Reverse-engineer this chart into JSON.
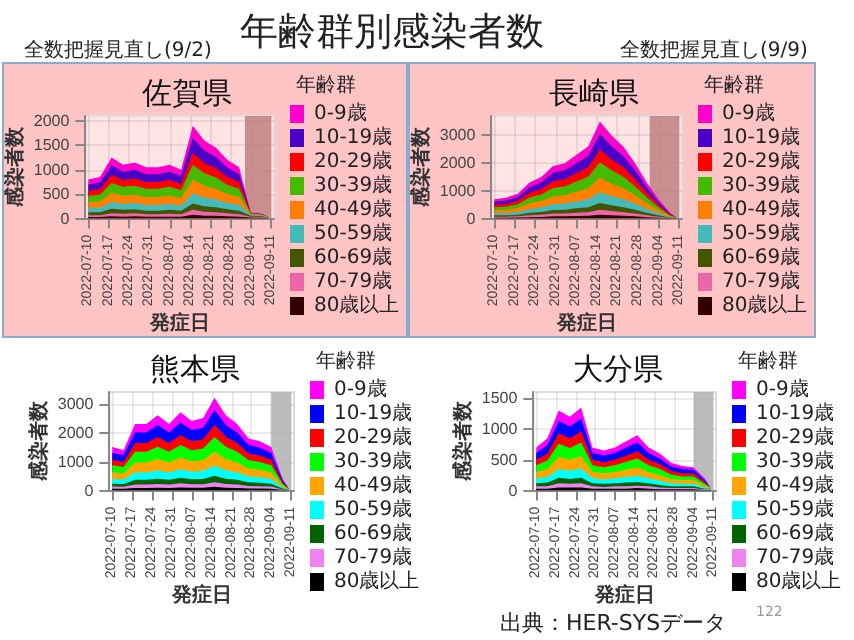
{
  "chart_data": [
    {
      "type": "area",
      "title": "佐賀県",
      "xlabel": "発症日",
      "ylabel": "感染者数",
      "legend_title": "年齢群",
      "annotations": [
        "年齢群別感染者数",
        "全数把握見直し(9/2)"
      ],
      "stacked": true,
      "grid": true,
      "legend": "right",
      "x": [
        "2022-07-10",
        "2022-07-14",
        "2022-07-18",
        "2022-07-22",
        "2022-07-26",
        "2022-07-30",
        "2022-08-03",
        "2022-08-07",
        "2022-08-11",
        "2022-08-15",
        "2022-08-19",
        "2022-08-23",
        "2022-08-27",
        "2022-08-31",
        "2022-09-04",
        "2022-09-08",
        "2022-09-10"
      ],
      "xlim": [
        "2022-07-09",
        "2022-09-12"
      ],
      "xticks": [
        "2022-07-10",
        "2022-07-17",
        "2022-07-24",
        "2022-07-31",
        "2022-08-07",
        "2022-08-14",
        "2022-08-21",
        "2022-08-28",
        "2022-09-04",
        "2022-09-11"
      ],
      "ylim": [
        0,
        2100
      ],
      "yticks": [
        0,
        500,
        1000,
        1500,
        2000
      ],
      "bands": [
        {
          "axis": "x",
          "from": "2022-09-02",
          "to": "2022-09-11",
          "color": "#c08080"
        }
      ],
      "series": [
        {
          "name": "80歳以上",
          "color": "#330000",
          "values": [
            30,
            30,
            50,
            40,
            50,
            40,
            40,
            40,
            40,
            80,
            60,
            60,
            50,
            40,
            20,
            15,
            5
          ]
        },
        {
          "name": "70-79歳",
          "color": "#ee66aa",
          "values": [
            40,
            40,
            60,
            60,
            60,
            50,
            50,
            60,
            50,
            100,
            80,
            70,
            60,
            50,
            20,
            20,
            5
          ]
        },
        {
          "name": "60-69歳",
          "color": "#445500",
          "values": [
            60,
            60,
            90,
            80,
            80,
            70,
            70,
            80,
            70,
            130,
            110,
            100,
            80,
            70,
            20,
            15,
            5
          ]
        },
        {
          "name": "50-59歳",
          "color": "#44bbbb",
          "values": [
            90,
            90,
            140,
            120,
            130,
            120,
            120,
            120,
            110,
            210,
            180,
            160,
            130,
            120,
            20,
            15,
            5
          ]
        },
        {
          "name": "40-49歳",
          "color": "#ff8000",
          "values": [
            120,
            130,
            190,
            170,
            170,
            160,
            160,
            170,
            150,
            280,
            240,
            220,
            180,
            160,
            15,
            10,
            5
          ]
        },
        {
          "name": "30-39歳",
          "color": "#44bb00",
          "values": [
            130,
            140,
            200,
            180,
            180,
            170,
            170,
            180,
            160,
            300,
            260,
            230,
            190,
            170,
            10,
            10,
            0
          ]
        },
        {
          "name": "20-29歳",
          "color": "#ff0000",
          "values": [
            100,
            110,
            160,
            140,
            150,
            140,
            140,
            140,
            130,
            250,
            210,
            190,
            160,
            140,
            5,
            5,
            0
          ]
        },
        {
          "name": "10-19歳",
          "color": "#4b00c8",
          "values": [
            130,
            140,
            200,
            170,
            180,
            160,
            160,
            170,
            160,
            300,
            250,
            230,
            190,
            160,
            5,
            5,
            0
          ]
        },
        {
          "name": "0-9歳",
          "color": "#ff00cc",
          "values": [
            100,
            110,
            160,
            140,
            150,
            140,
            140,
            140,
            130,
            250,
            210,
            190,
            160,
            140,
            10,
            5,
            0
          ]
        }
      ]
    },
    {
      "type": "area",
      "title": "長崎県",
      "xlabel": "発症日",
      "ylabel": "感染者数",
      "legend_title": "年齢群",
      "annotations": [
        "全数把握見直し(9/9)"
      ],
      "stacked": true,
      "grid": true,
      "legend": "right",
      "x": [
        "2022-07-10",
        "2022-07-14",
        "2022-07-18",
        "2022-07-22",
        "2022-07-26",
        "2022-07-30",
        "2022-08-03",
        "2022-08-07",
        "2022-08-11",
        "2022-08-15",
        "2022-08-19",
        "2022-08-23",
        "2022-08-27",
        "2022-08-31",
        "2022-09-04",
        "2022-09-08",
        "2022-09-10"
      ],
      "xlim": [
        "2022-07-09",
        "2022-09-12"
      ],
      "xticks": [
        "2022-07-10",
        "2022-07-17",
        "2022-07-24",
        "2022-07-31",
        "2022-08-07",
        "2022-08-14",
        "2022-08-21",
        "2022-08-28",
        "2022-09-04",
        "2022-09-11"
      ],
      "ylim": [
        0,
        3700
      ],
      "yticks": [
        0,
        1000,
        2000,
        3000
      ],
      "bands": [
        {
          "axis": "x",
          "from": "2022-09-01",
          "to": "2022-09-11",
          "color": "#c08080"
        }
      ],
      "series": [
        {
          "name": "80歳以上",
          "color": "#330000",
          "values": [
            30,
            30,
            40,
            50,
            60,
            80,
            80,
            90,
            100,
            140,
            120,
            100,
            80,
            50,
            30,
            10,
            10
          ]
        },
        {
          "name": "70-79歳",
          "color": "#ee66aa",
          "values": [
            40,
            40,
            40,
            70,
            80,
            100,
            100,
            120,
            130,
            180,
            150,
            130,
            100,
            70,
            40,
            10,
            10
          ]
        },
        {
          "name": "60-69歳",
          "color": "#445500",
          "values": [
            50,
            50,
            60,
            90,
            100,
            130,
            140,
            160,
            180,
            240,
            210,
            180,
            140,
            90,
            50,
            10,
            10
          ]
        },
        {
          "name": "50-59歳",
          "color": "#44bbbb",
          "values": [
            80,
            80,
            100,
            140,
            160,
            210,
            220,
            250,
            290,
            390,
            330,
            290,
            220,
            140,
            80,
            20,
            10
          ]
        },
        {
          "name": "40-49歳",
          "color": "#ff8000",
          "values": [
            100,
            110,
            140,
            200,
            230,
            280,
            300,
            350,
            390,
            520,
            450,
            390,
            300,
            200,
            100,
            30,
            10
          ]
        },
        {
          "name": "30-39歳",
          "color": "#44bb00",
          "values": [
            110,
            120,
            140,
            210,
            240,
            300,
            320,
            370,
            420,
            560,
            480,
            420,
            320,
            210,
            110,
            30,
            0
          ]
        },
        {
          "name": "20-29歳",
          "color": "#ff0000",
          "values": [
            90,
            100,
            120,
            170,
            190,
            250,
            260,
            300,
            340,
            460,
            390,
            340,
            260,
            170,
            90,
            30,
            0
          ]
        },
        {
          "name": "10-19歳",
          "color": "#4b00c8",
          "values": [
            110,
            120,
            140,
            200,
            240,
            300,
            320,
            360,
            410,
            560,
            480,
            410,
            320,
            200,
            110,
            30,
            0
          ]
        },
        {
          "name": "0-9歳",
          "color": "#ff00cc",
          "values": [
            90,
            100,
            120,
            170,
            200,
            250,
            260,
            300,
            340,
            450,
            390,
            340,
            260,
            170,
            90,
            30,
            0
          ]
        }
      ]
    },
    {
      "type": "area",
      "title": "熊本県",
      "xlabel": "発症日",
      "ylabel": "感染者数",
      "legend_title": "年齢群",
      "stacked": true,
      "grid": true,
      "legend": "right",
      "x": [
        "2022-07-10",
        "2022-07-14",
        "2022-07-18",
        "2022-07-22",
        "2022-07-26",
        "2022-07-30",
        "2022-08-03",
        "2022-08-07",
        "2022-08-11",
        "2022-08-15",
        "2022-08-19",
        "2022-08-23",
        "2022-08-27",
        "2022-08-31",
        "2022-09-04",
        "2022-09-08",
        "2022-09-10"
      ],
      "xlim": [
        "2022-07-09",
        "2022-09-12"
      ],
      "xticks": [
        "2022-07-10",
        "2022-07-17",
        "2022-07-24",
        "2022-07-31",
        "2022-08-07",
        "2022-08-14",
        "2022-08-21",
        "2022-08-28",
        "2022-09-04",
        "2022-09-11"
      ],
      "ylim": [
        0,
        3400
      ],
      "yticks": [
        0,
        1000,
        2000,
        3000
      ],
      "bands": [
        {
          "axis": "x",
          "from": "2022-09-04",
          "to": "2022-09-11",
          "color": "#b0b0b0"
        }
      ],
      "series": [
        {
          "name": "80歳以上",
          "color": "#000000",
          "values": [
            60,
            60,
            90,
            90,
            100,
            90,
            110,
            100,
            100,
            130,
            100,
            90,
            70,
            70,
            60,
            20,
            10
          ]
        },
        {
          "name": "70-79歳",
          "color": "#ee82ee",
          "values": [
            80,
            70,
            120,
            120,
            130,
            120,
            140,
            120,
            120,
            160,
            130,
            120,
            90,
            80,
            80,
            20,
            10
          ]
        },
        {
          "name": "60-69歳",
          "color": "#006400",
          "values": [
            100,
            100,
            160,
            160,
            180,
            160,
            190,
            170,
            180,
            220,
            180,
            160,
            130,
            120,
            100,
            30,
            10
          ]
        },
        {
          "name": "50-59歳",
          "color": "#00ffff",
          "values": [
            160,
            150,
            250,
            250,
            290,
            250,
            300,
            260,
            280,
            350,
            290,
            250,
            200,
            190,
            160,
            40,
            10
          ]
        },
        {
          "name": "40-49歳",
          "color": "#ffa500",
          "values": [
            230,
            210,
            350,
            350,
            390,
            350,
            400,
            360,
            370,
            480,
            390,
            350,
            270,
            260,
            230,
            60,
            10
          ]
        },
        {
          "name": "30-39歳",
          "color": "#00ff00",
          "values": [
            240,
            220,
            370,
            370,
            420,
            370,
            430,
            380,
            400,
            510,
            420,
            370,
            290,
            270,
            240,
            60,
            20
          ]
        },
        {
          "name": "20-29歳",
          "color": "#ff0000",
          "values": [
            190,
            180,
            300,
            300,
            340,
            300,
            350,
            310,
            320,
            420,
            340,
            300,
            230,
            220,
            190,
            50,
            10
          ]
        },
        {
          "name": "10-19歳",
          "color": "#0000ff",
          "values": [
            240,
            230,
            360,
            360,
            410,
            360,
            430,
            390,
            400,
            510,
            410,
            360,
            290,
            270,
            240,
            70,
            10
          ]
        },
        {
          "name": "0-9歳",
          "color": "#ff00ff",
          "values": [
            200,
            180,
            300,
            300,
            340,
            300,
            350,
            310,
            330,
            420,
            340,
            300,
            230,
            220,
            200,
            50,
            10
          ]
        }
      ]
    },
    {
      "type": "area",
      "title": "大分県",
      "xlabel": "発症日",
      "ylabel": "感染者数",
      "legend_title": "年齢群",
      "annotations": [
        "出典：HER-SYSデータ",
        "122"
      ],
      "stacked": true,
      "grid": true,
      "legend": "right",
      "x": [
        "2022-07-10",
        "2022-07-14",
        "2022-07-18",
        "2022-07-22",
        "2022-07-26",
        "2022-07-30",
        "2022-08-03",
        "2022-08-07",
        "2022-08-11",
        "2022-08-15",
        "2022-08-19",
        "2022-08-23",
        "2022-08-27",
        "2022-08-31",
        "2022-09-04",
        "2022-09-08",
        "2022-09-10"
      ],
      "xlim": [
        "2022-07-09",
        "2022-09-12"
      ],
      "xticks": [
        "2022-07-10",
        "2022-07-17",
        "2022-07-24",
        "2022-07-31",
        "2022-08-07",
        "2022-08-14",
        "2022-08-21",
        "2022-08-28",
        "2022-09-04",
        "2022-09-11"
      ],
      "ylim": [
        0,
        1600
      ],
      "yticks": [
        0,
        500,
        1000,
        1500
      ],
      "bands": [
        {
          "axis": "x",
          "from": "2022-09-04",
          "to": "2022-09-11",
          "color": "#b0b0b0"
        }
      ],
      "series": [
        {
          "name": "80歳以上",
          "color": "#000000",
          "values": [
            30,
            30,
            50,
            50,
            50,
            30,
            30,
            30,
            30,
            40,
            30,
            20,
            20,
            20,
            20,
            10,
            10
          ]
        },
        {
          "name": "70-79歳",
          "color": "#ee82ee",
          "values": [
            40,
            40,
            70,
            60,
            70,
            40,
            30,
            40,
            40,
            40,
            40,
            30,
            20,
            20,
            20,
            10,
            10
          ]
        },
        {
          "name": "60-69歳",
          "color": "#006400",
          "values": [
            50,
            60,
            90,
            80,
            90,
            50,
            50,
            50,
            60,
            60,
            50,
            40,
            30,
            30,
            30,
            10,
            10
          ]
        },
        {
          "name": "50-59歳",
          "color": "#00ffff",
          "values": [
            80,
            90,
            140,
            130,
            150,
            80,
            70,
            80,
            90,
            100,
            80,
            70,
            50,
            40,
            40,
            20,
            10
          ]
        },
        {
          "name": "40-49歳",
          "color": "#ffa500",
          "values": [
            100,
            130,
            200,
            180,
            200,
            100,
            100,
            100,
            120,
            140,
            100,
            90,
            70,
            60,
            60,
            30,
            10
          ]
        },
        {
          "name": "30-39歳",
          "color": "#00ff00",
          "values": [
            110,
            140,
            210,
            190,
            220,
            110,
            100,
            110,
            130,
            140,
            110,
            100,
            70,
            60,
            60,
            30,
            0
          ]
        },
        {
          "name": "20-29歳",
          "color": "#ff0000",
          "values": [
            90,
            110,
            170,
            160,
            180,
            90,
            80,
            90,
            100,
            120,
            90,
            80,
            60,
            50,
            50,
            30,
            0
          ]
        },
        {
          "name": "10-19歳",
          "color": "#0000ff",
          "values": [
            110,
            140,
            200,
            190,
            210,
            110,
            110,
            110,
            130,
            140,
            110,
            90,
            70,
            70,
            60,
            30,
            0
          ]
        },
        {
          "name": "0-9歳",
          "color": "#ff00ff",
          "values": [
            90,
            110,
            170,
            160,
            180,
            90,
            80,
            90,
            100,
            120,
            90,
            80,
            60,
            50,
            40,
            30,
            0
          ]
        }
      ]
    }
  ]
}
